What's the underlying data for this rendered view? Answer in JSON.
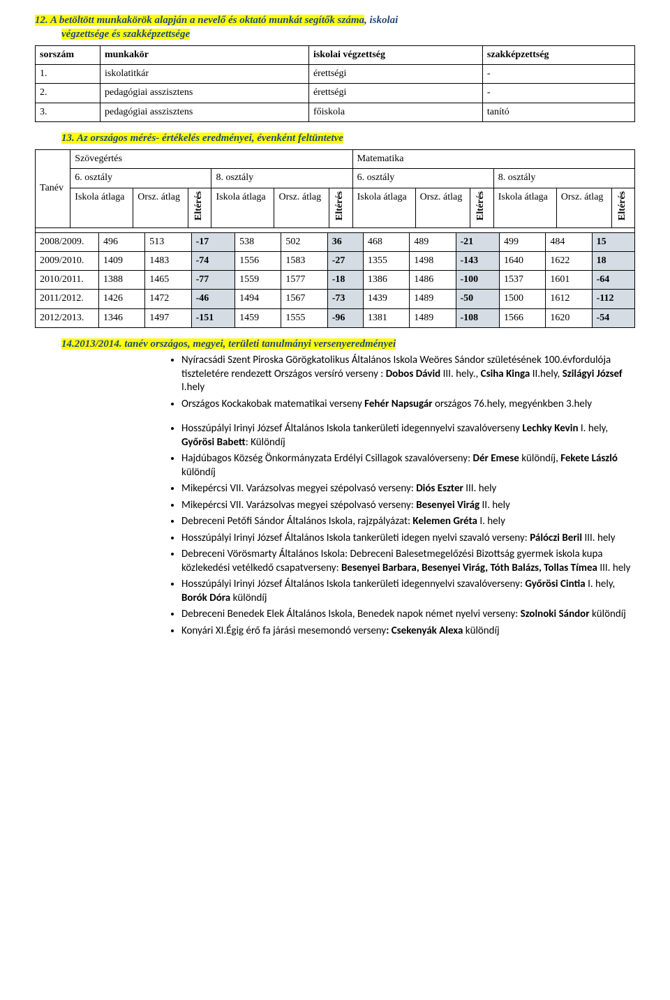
{
  "section12": {
    "title_part1": "12.",
    "title_line1a": " A betöltött munkakörök alapján a nevelő és oktató munkát segítők száma",
    "title_line1b": ", iskolai",
    "title_line2": "végzettsége és szakképzettsége",
    "headers": [
      "sorszám",
      "munkakör",
      "iskolai végzettség",
      "szakképzettség"
    ],
    "rows": [
      [
        "1.",
        "iskolatitkár",
        "érettségi",
        "-"
      ],
      [
        "2.",
        "pedagógiai asszisztens",
        "érettségi",
        "-"
      ],
      [
        "3.",
        "pedagógiai asszisztens",
        "főiskola",
        "tanító"
      ]
    ]
  },
  "section13": {
    "title_num": "13.",
    "title_text": " Az országos mérés- értékelés eredményei, évenként feltüntetve",
    "group_headers": [
      "Szövegértés",
      "Matematika"
    ],
    "grade_headers": [
      "6. osztály",
      "8. osztály",
      "6. osztály",
      "8. osztály"
    ],
    "tanev_label": "Tanév",
    "col_labels": {
      "iskola": "Iskola átlaga",
      "orsz": "Orsz. átlag",
      "elteres": "Eltérés"
    },
    "rows": [
      {
        "year": "2008/2009.",
        "v": [
          496,
          513,
          -17,
          538,
          502,
          36,
          468,
          489,
          -21,
          499,
          484,
          15
        ]
      },
      {
        "year": "2009/2010.",
        "v": [
          1409,
          1483,
          -74,
          1556,
          1583,
          -27,
          1355,
          1498,
          -143,
          1640,
          1622,
          18
        ]
      },
      {
        "year": "2010/2011.",
        "v": [
          1388,
          1465,
          -77,
          1559,
          1577,
          -18,
          1386,
          1486,
          -100,
          1537,
          1601,
          -64
        ]
      },
      {
        "year": "2011/2012.",
        "v": [
          1426,
          1472,
          -46,
          1494,
          1567,
          -73,
          1439,
          1489,
          -50,
          1500,
          1612,
          -112
        ]
      },
      {
        "year": "2012/2013.",
        "v": [
          1346,
          1497,
          -151,
          1459,
          1555,
          -96,
          1381,
          1489,
          -108,
          1566,
          1620,
          -54
        ]
      }
    ]
  },
  "section14": {
    "title_num": "14.",
    "title_text": "2013/2014. tanév országos, megyei, területi tanulmányi versenyeredményei",
    "items": [
      {
        "html": "Nyíracsádi Szent Piroska Görögkatolikus Általános Iskola Weöres Sándor születésének 100.évfordulója tiszteletére rendezett Országos versíró verseny : <b>Dobos Dávid</b> III. hely., <b>Csiha Kinga</b> II.hely, <b>Szilágyi József</b> I.hely"
      },
      {
        "html": "Országos Kockakobak matematikai verseny <b>Fehér Napsugár</b> országos 76.hely, megyénkben 3.hely"
      }
    ],
    "items2": [
      {
        "html": "Hosszúpályi Irinyi József Általános Iskola tankerületi idegennyelvi szavalóverseny <b>Lechky  Kevin</b> I. hely, <b>Győrösi Babett</b>: Különdíj"
      },
      {
        "html": "Hajdúbagos Község Önkormányzata Erdélyi Csillagok szavalóverseny: <b>Dér Emese</b> különdíj, <b>Fekete László</b> különdíj"
      },
      {
        "html": "Mikepércsi VII. Varázsolvas megyei szépolvasó verseny: <b>Diós Eszter</b> III. hely"
      },
      {
        "html": "Mikepércsi VII. Varázsolvas megyei szépolvasó verseny: <b>Besenyei Virág</b> II. hely"
      },
      {
        "html": "Debreceni Petőfi Sándor Általános Iskola, rajzpályázat: <b>Kelemen Gréta</b> I. hely"
      },
      {
        "html": "Hosszúpályi Irinyi József Általános Iskola tankerületi idegen nyelvi szavaló verseny: <b>Pálóczi Beril</b> III. hely"
      },
      {
        "html": "Debreceni Vörösmarty Általános Iskola: Debreceni Balesetmegelőzési Bizottság gyermek iskola kupa közlekedési vetélkedő csapatverseny: <b>Besenyei Barbara, Besenyei Virág, Tóth Balázs, Tollas Tímea</b> III. hely"
      },
      {
        "html": "Hosszúpályi  Irinyi József Általános Iskola  tankerületi idegennyelvi szavalóverseny: <b>Győrösi Cintia</b> I. hely, <b>Borók Dóra</b> különdíj"
      },
      {
        "html": "Debreceni Benedek Elek Általános Iskola, Benedek napok német nyelvi verseny: <b>Szolnoki Sándor</b> különdíj"
      },
      {
        "html": "Konyári XI.Égig érő fa járási mesemondó verseny<b>:  Csekenyák  Alexa</b> különdíj"
      }
    ]
  }
}
